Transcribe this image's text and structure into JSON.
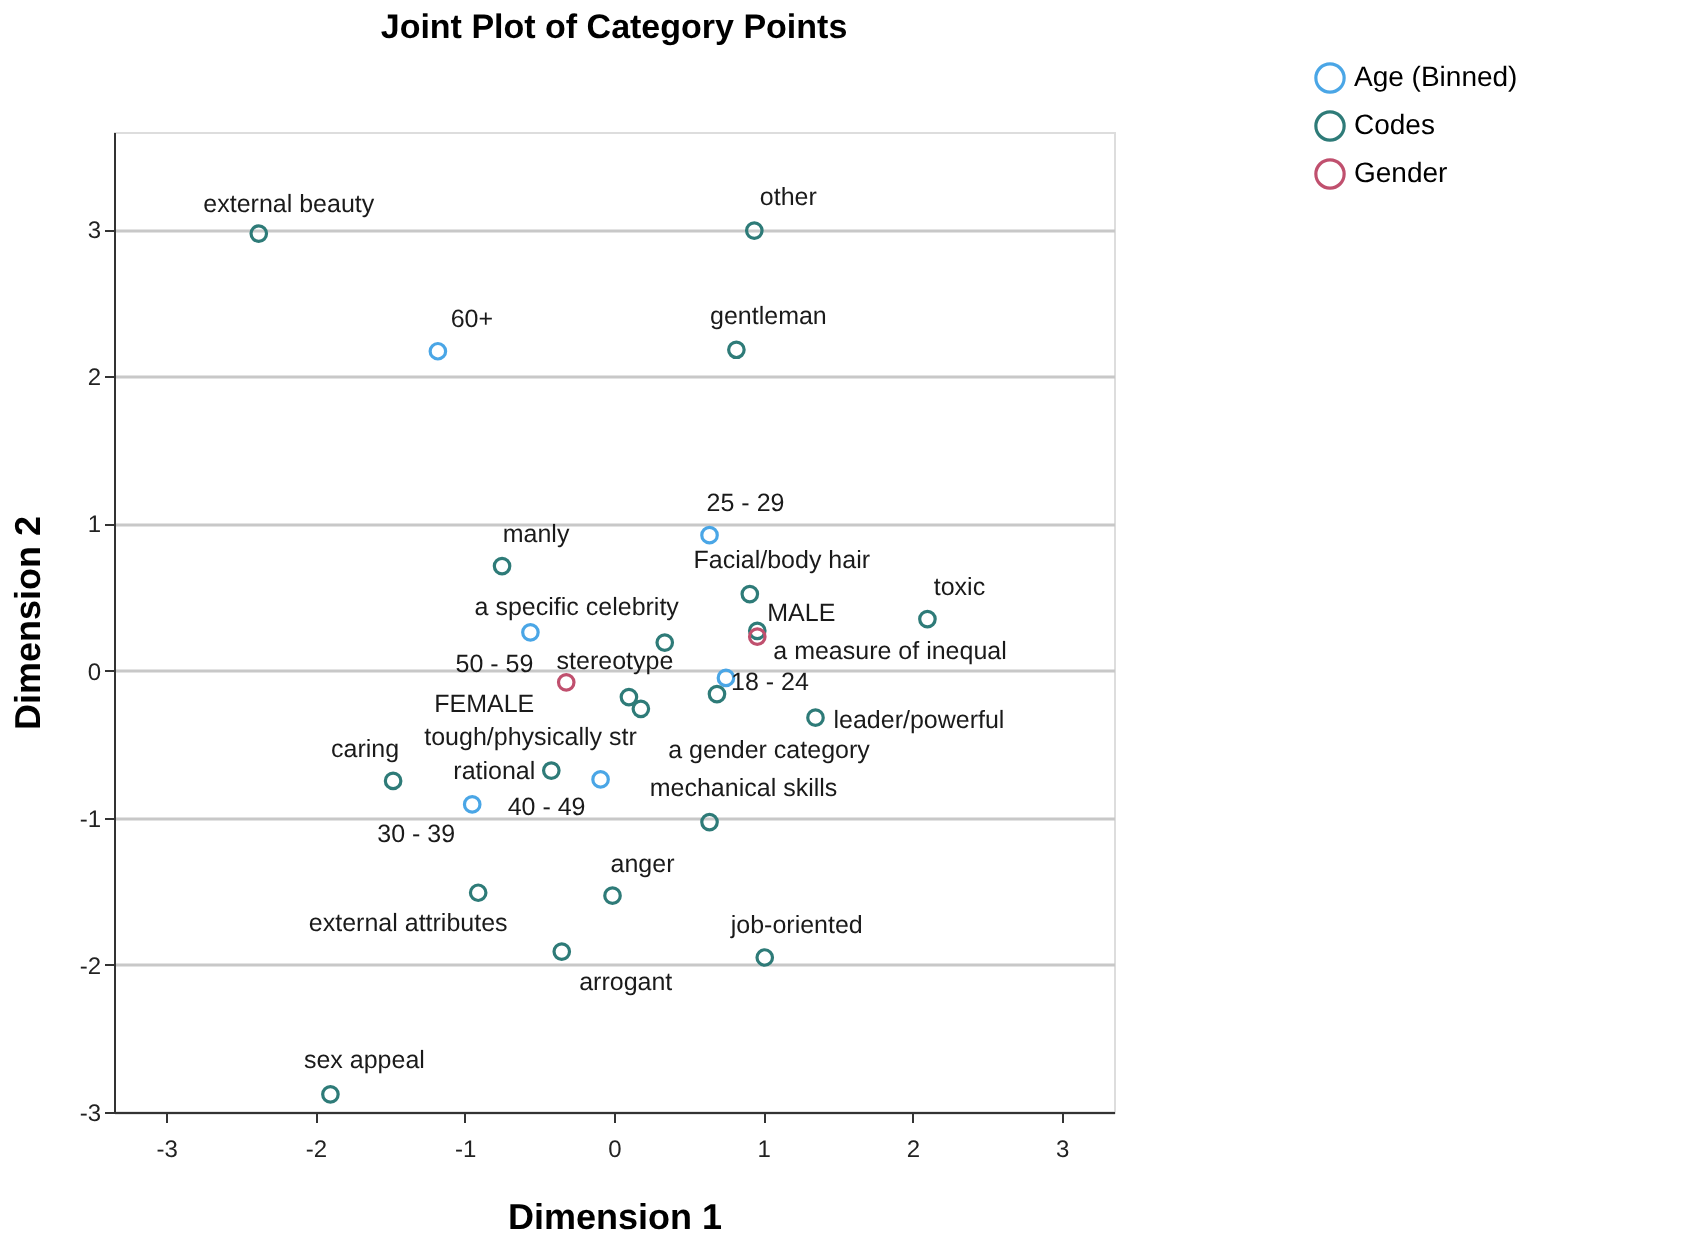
{
  "chart_data": {
    "type": "scatter",
    "title": "Joint Plot of Category Points",
    "xlabel": "Dimension 1",
    "ylabel": "Dimension 2",
    "xlim": [
      -3.35,
      3.35
    ],
    "ylim": [
      -3,
      3.66
    ],
    "xticks": [
      -3,
      -2,
      -1,
      0,
      1,
      2,
      3
    ],
    "yticks": [
      -3,
      -2,
      -1,
      0,
      1,
      2,
      3
    ],
    "grid": "y",
    "legend": "top right",
    "marker": "circle",
    "series": [
      {
        "name": "Age (Binned)",
        "color": "#4aa6e6",
        "x": [
          -1.18,
          0.64,
          -0.56,
          0.75,
          -0.09,
          -0.95
        ],
        "values": [
          2.17,
          0.92,
          0.26,
          -0.05,
          -0.74,
          -0.91
        ],
        "value_labels": [
          "60+",
          "25 - 29",
          "50 - 59",
          "18 - 24",
          "40 - 49",
          "30 - 39"
        ]
      },
      {
        "name": "Codes",
        "color": "#2e7b78",
        "x": [
          -2.38,
          0.94,
          0.82,
          -0.75,
          0.91,
          2.1,
          0.34,
          0.96,
          0.1,
          0.18,
          0.69,
          1.35,
          -0.42,
          -1.48,
          0.64,
          -0.91,
          -0.01,
          -0.35,
          1.01,
          -1.9
        ],
        "values": [
          2.97,
          2.99,
          2.18,
          0.71,
          0.52,
          0.35,
          0.19,
          0.27,
          -0.18,
          -0.26,
          -0.16,
          -0.32,
          -0.68,
          -0.75,
          -1.03,
          -1.51,
          -1.53,
          -1.91,
          -1.95,
          -2.88
        ],
        "value_labels": [
          "external beauty",
          "other",
          "gentleman",
          "manly",
          "Facial/body hair",
          "toxic",
          "a specific celebrity",
          "a measure of inequal",
          "stereotype",
          "tough/physically str",
          "a gender category",
          "leader/powerful",
          "rational",
          "caring",
          "mechanical skills",
          "external attributes",
          "anger",
          "arrogant",
          "job-oriented",
          "sex appeal"
        ]
      },
      {
        "name": "Gender",
        "color": "#c0506e",
        "x": [
          0.96,
          -0.32
        ],
        "values": [
          0.23,
          -0.08
        ],
        "value_labels": [
          "MALE",
          "FEMALE"
        ]
      }
    ]
  }
}
